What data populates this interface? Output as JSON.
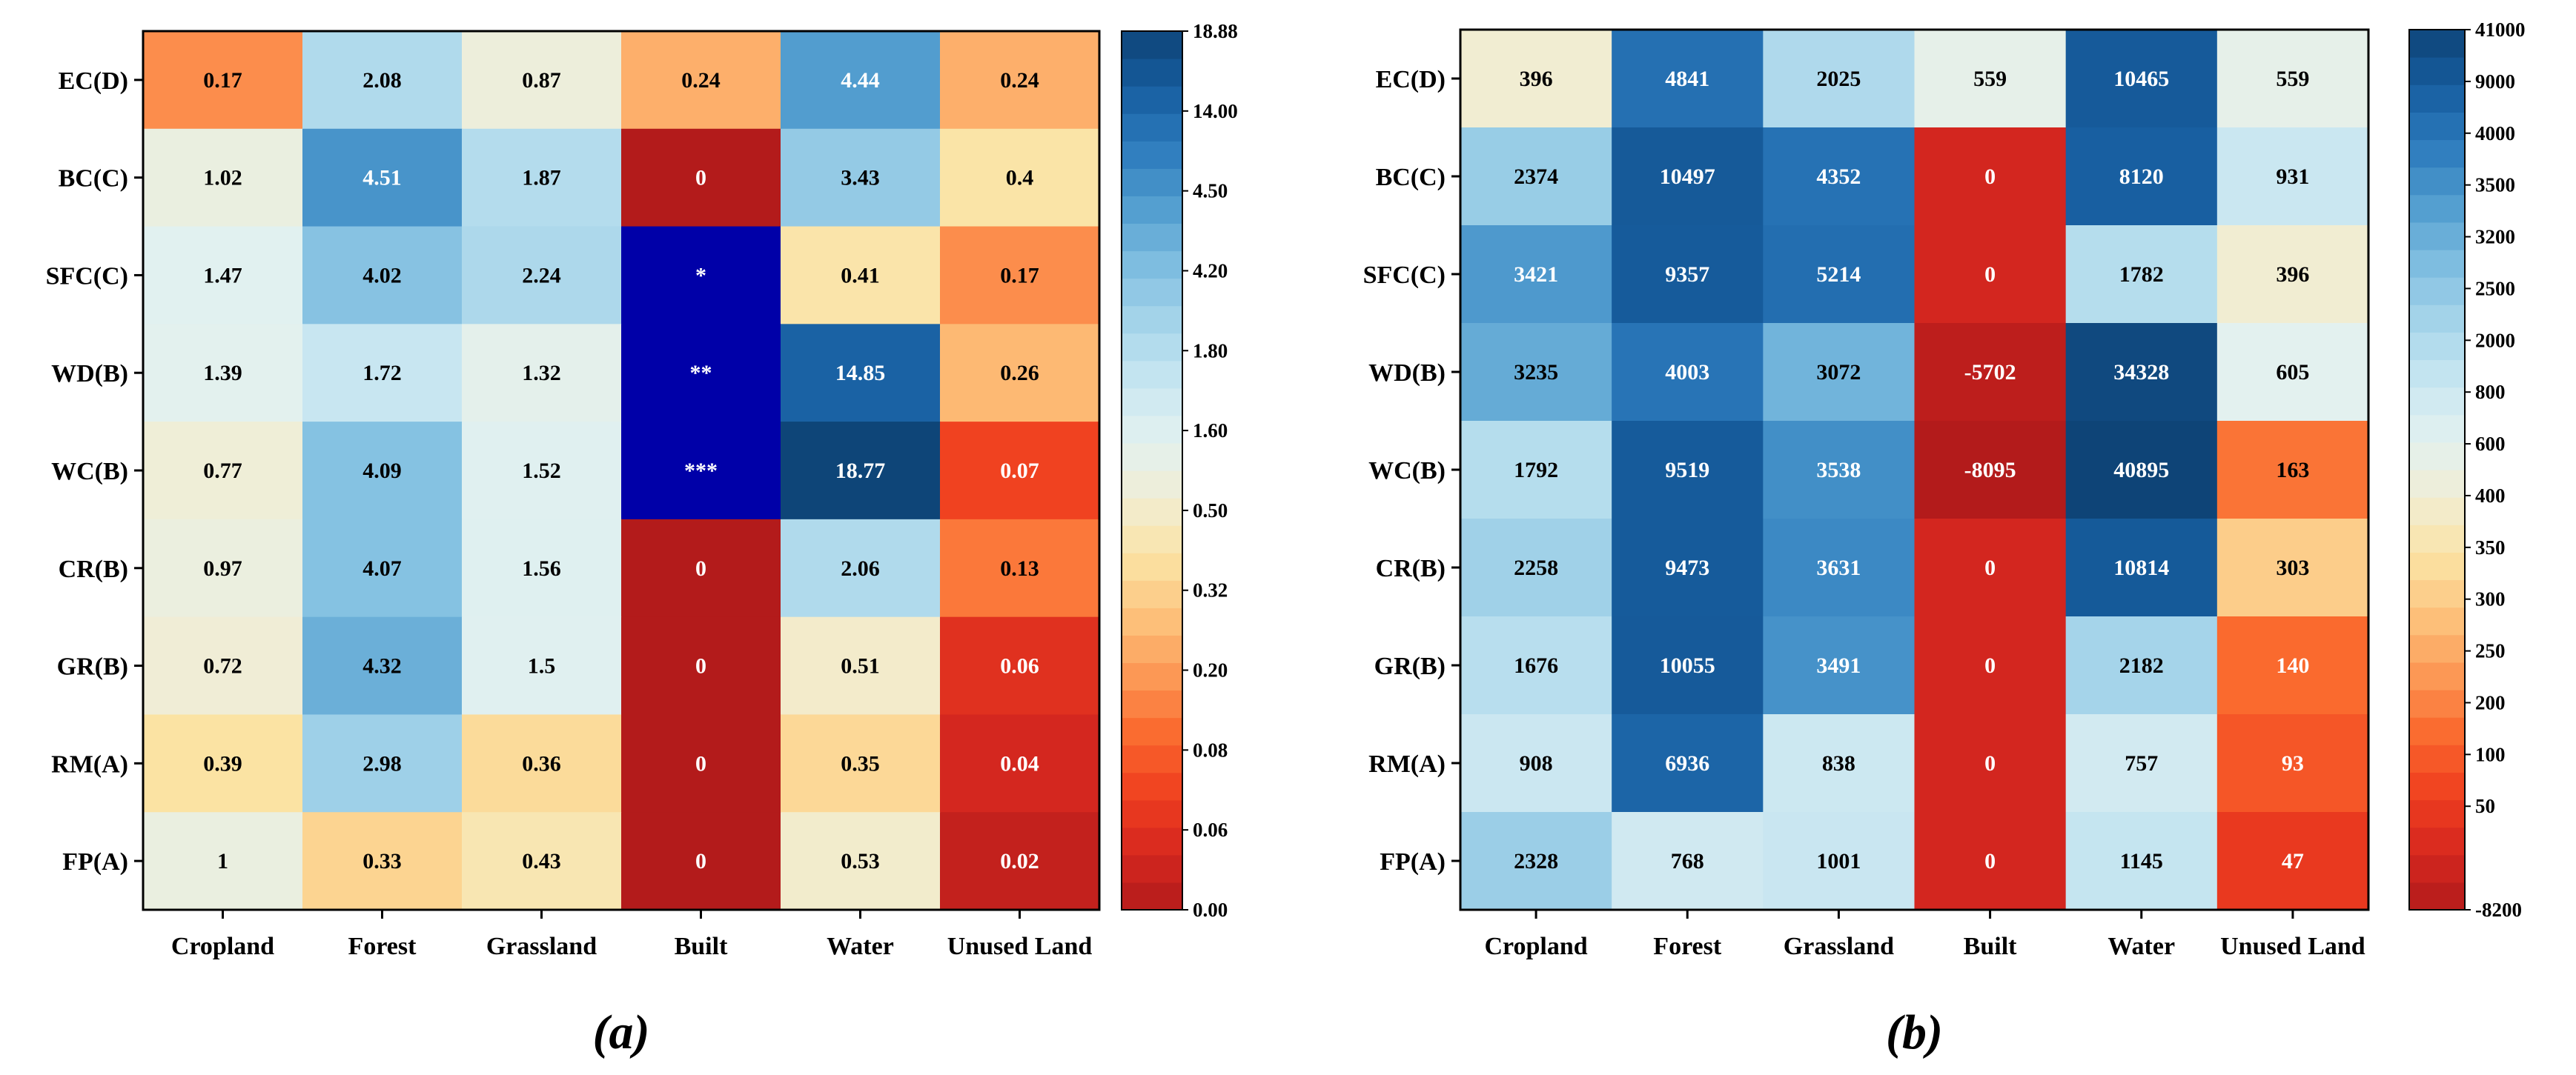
{
  "chart_data": [
    {
      "type": "heatmap",
      "panel_label": "(a)",
      "columns": [
        "Cropland",
        "Forest",
        "Grassland",
        "Built",
        "Water",
        "Unused Land"
      ],
      "rows": [
        "EC(D)",
        "BC(C)",
        "SFC(C)",
        "WD(B)",
        "WC(B)",
        "CR(B)",
        "GR(B)",
        "RM(A)",
        "FP(A)"
      ],
      "values": [
        [
          0.17,
          2.08,
          0.87,
          0.24,
          4.44,
          0.24
        ],
        [
          1.02,
          4.51,
          1.87,
          0,
          3.43,
          0.4
        ],
        [
          1.47,
          4.02,
          2.24,
          null,
          0.41,
          0.17
        ],
        [
          1.39,
          1.72,
          1.32,
          null,
          14.85,
          0.26
        ],
        [
          0.77,
          4.09,
          1.52,
          null,
          18.77,
          0.07
        ],
        [
          0.97,
          4.07,
          1.56,
          0,
          2.06,
          0.13
        ],
        [
          0.72,
          4.32,
          1.5,
          0,
          0.51,
          0.06
        ],
        [
          0.39,
          2.98,
          0.36,
          0,
          0.35,
          0.04
        ],
        [
          1,
          0.33,
          0.43,
          0,
          0.53,
          0.02
        ]
      ],
      "cell_text": [
        [
          "0.17",
          "2.08",
          "0.87",
          "0.24",
          "4.44",
          "0.24"
        ],
        [
          "1.02",
          "4.51",
          "1.87",
          "0",
          "3.43",
          "0.4"
        ],
        [
          "1.47",
          "4.02",
          "2.24",
          "*",
          "0.41",
          "0.17"
        ],
        [
          "1.39",
          "1.72",
          "1.32",
          "**",
          "14.85",
          "0.26"
        ],
        [
          "0.77",
          "4.09",
          "1.52",
          "***",
          "18.77",
          "0.07"
        ],
        [
          "0.97",
          "4.07",
          "1.56",
          "0",
          "2.06",
          "0.13"
        ],
        [
          "0.72",
          "4.32",
          "1.5",
          "0",
          "0.51",
          "0.06"
        ],
        [
          "0.39",
          "2.98",
          "0.36",
          "0",
          "0.35",
          "0.04"
        ],
        [
          "1",
          "0.33",
          "0.43",
          "0",
          "0.53",
          "0.02"
        ]
      ],
      "special_cell_color": "#0000a8",
      "colorbar_stops": [
        0,
        0.06,
        0.08,
        0.2,
        0.32,
        0.5,
        1.6,
        1.8,
        4.2,
        4.5,
        14.0,
        18.88
      ],
      "colorbar_labels": [
        "18.88",
        "14.00",
        "4.50",
        "4.20",
        "1.80",
        "1.60",
        "0.50",
        "0.32",
        "0.20",
        "0.08",
        "0.06",
        "0.00"
      ],
      "colorbar_range": [
        0,
        18.88
      ]
    },
    {
      "type": "heatmap",
      "panel_label": "(b)",
      "columns": [
        "Cropland",
        "Forest",
        "Grassland",
        "Built",
        "Water",
        "Unused Land"
      ],
      "rows": [
        "EC(D)",
        "BC(C)",
        "SFC(C)",
        "WD(B)",
        "WC(B)",
        "CR(B)",
        "GR(B)",
        "RM(A)",
        "FP(A)"
      ],
      "values": [
        [
          396,
          4841,
          2025,
          559,
          10465,
          559
        ],
        [
          2374,
          10497,
          4352,
          0,
          8120,
          931
        ],
        [
          3421,
          9357,
          5214,
          0,
          1782,
          396
        ],
        [
          3235,
          4003,
          3072,
          -5702,
          34328,
          605
        ],
        [
          1792,
          9519,
          3538,
          -8095,
          40895,
          163
        ],
        [
          2258,
          9473,
          3631,
          0,
          10814,
          303
        ],
        [
          1676,
          10055,
          3491,
          0,
          2182,
          140
        ],
        [
          908,
          6936,
          838,
          0,
          757,
          93
        ],
        [
          2328,
          768,
          1001,
          0,
          1145,
          47
        ]
      ],
      "cell_text": [
        [
          "396",
          "4841",
          "2025",
          "559",
          "10465",
          "559"
        ],
        [
          "2374",
          "10497",
          "4352",
          "0",
          "8120",
          "931"
        ],
        [
          "3421",
          "9357",
          "5214",
          "0",
          "1782",
          "396"
        ],
        [
          "3235",
          "4003",
          "3072",
          "-5702",
          "34328",
          "605"
        ],
        [
          "1792",
          "9519",
          "3538",
          "-8095",
          "40895",
          "163"
        ],
        [
          "2258",
          "9473",
          "3631",
          "0",
          "10814",
          "303"
        ],
        [
          "1676",
          "10055",
          "3491",
          "0",
          "2182",
          "140"
        ],
        [
          "908",
          "6936",
          "838",
          "0",
          "757",
          "93"
        ],
        [
          "2328",
          "768",
          "1001",
          "0",
          "1145",
          "47"
        ]
      ],
      "colorbar_stops": [
        -8200,
        0,
        50,
        100,
        200,
        250,
        300,
        350,
        400,
        600,
        800,
        2000,
        2500,
        3200,
        3500,
        4000,
        9000,
        41000
      ],
      "colorbar_labels": [
        "41000",
        "9000",
        "4000",
        "3500",
        "3200",
        "2500",
        "2000",
        "800",
        "600",
        "400",
        "350",
        "300",
        "250",
        "200",
        "100",
        "50",
        "-8200"
      ],
      "colorbar_range": [
        -8200,
        41000
      ]
    }
  ],
  "palette": [
    "#b31b1b",
    "#d7281f",
    "#f0401f",
    "#fa6a2e",
    "#fc9956",
    "#fdc27c",
    "#fbe3a4",
    "#f1edd3",
    "#e2f1f0",
    "#c8e6f1",
    "#a6d5ea",
    "#7fbee0",
    "#529dcf",
    "#2d7bbd",
    "#175ea0",
    "#0e4477"
  ]
}
